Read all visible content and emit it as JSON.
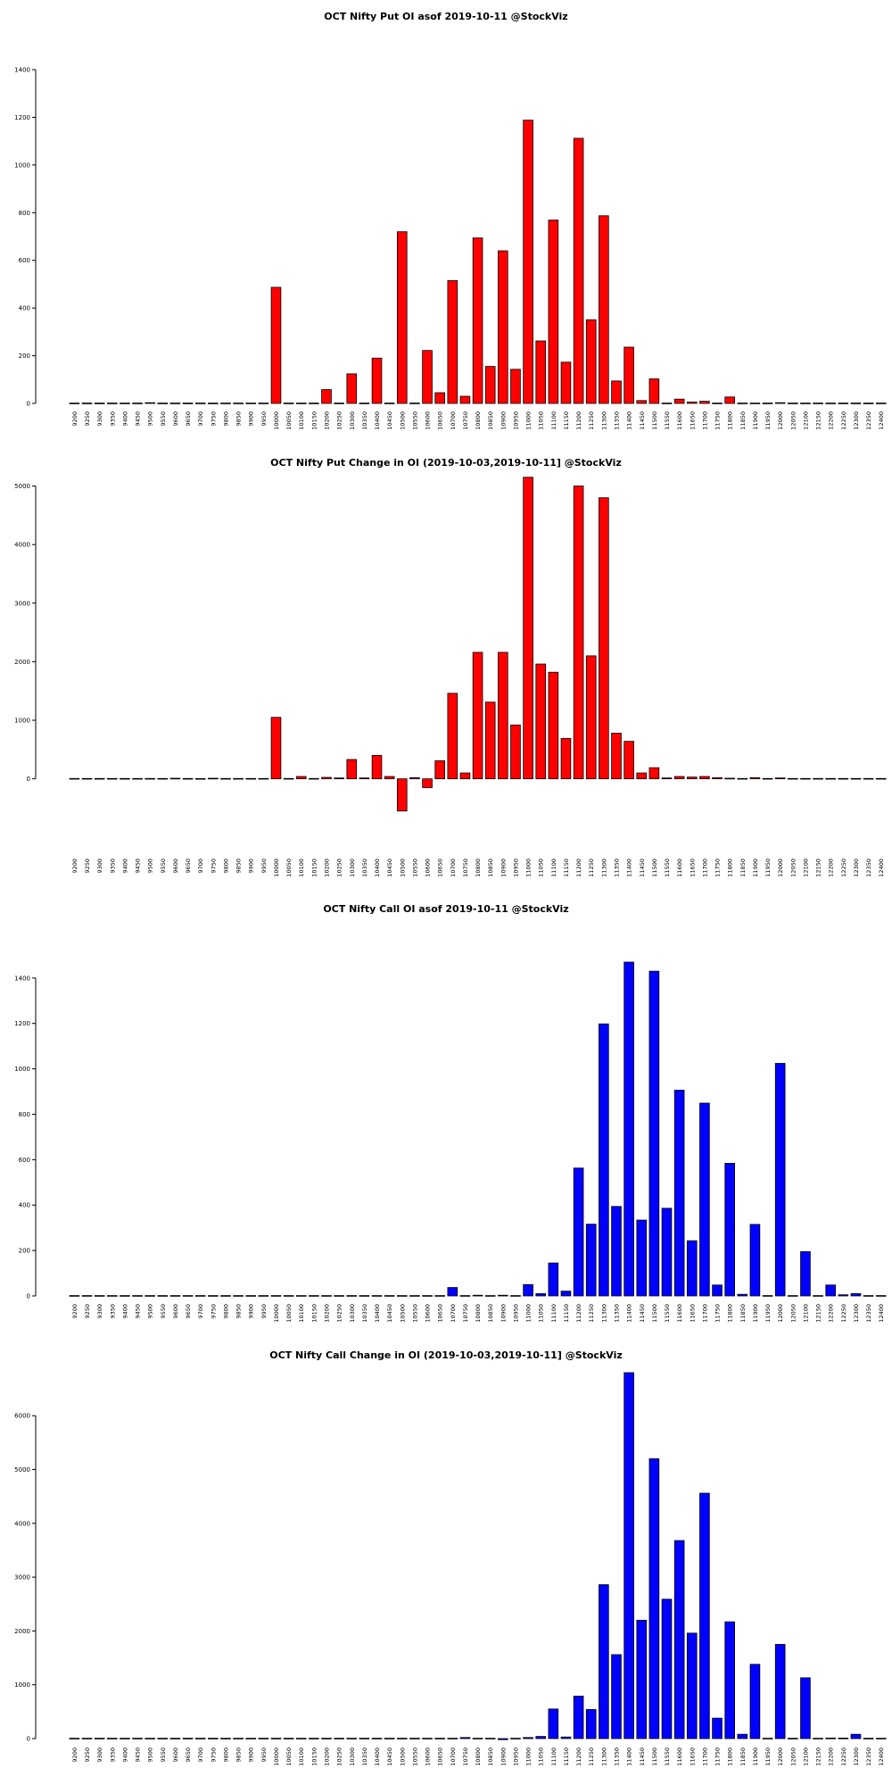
{
  "strikes": [
    "9200",
    "9250",
    "9300",
    "9350",
    "9400",
    "9450",
    "9500",
    "9550",
    "9600",
    "9650",
    "9700",
    "9750",
    "9800",
    "9850",
    "9900",
    "9950",
    "10000",
    "10050",
    "10100",
    "10150",
    "10200",
    "10250",
    "10300",
    "10350",
    "10400",
    "10450",
    "10500",
    "10550",
    "10600",
    "10650",
    "10700",
    "10750",
    "10800",
    "10850",
    "10900",
    "10950",
    "11000",
    "11050",
    "11100",
    "11150",
    "11200",
    "11250",
    "11300",
    "11350",
    "11400",
    "11450",
    "11500",
    "11550",
    "11600",
    "11650",
    "11700",
    "11750",
    "11800",
    "11850",
    "11900",
    "11950",
    "12000",
    "12050",
    "12100",
    "12150",
    "12200",
    "12250",
    "12300",
    "12350",
    "12400"
  ],
  "chart_data": [
    {
      "type": "bar",
      "title": "OCT Nifty Put OI asof 2019-10-11 @StockViz",
      "color": "#ff0000",
      "ylim": [
        0,
        1400
      ],
      "yticks": [
        0,
        200,
        400,
        600,
        800,
        1000,
        1200,
        1400
      ],
      "series": [
        {
          "values": [
            0,
            0,
            0,
            0,
            0,
            0,
            3,
            0,
            0,
            0,
            0,
            0,
            0,
            0,
            0,
            0,
            487,
            0,
            0,
            0,
            58,
            0,
            124,
            0,
            190,
            0,
            720,
            0,
            222,
            45,
            515,
            30,
            694,
            155,
            640,
            143,
            1188,
            262,
            769,
            173,
            1112,
            351,
            787,
            94,
            236,
            12,
            103,
            0,
            18,
            6,
            9,
            0,
            27,
            0,
            0,
            0,
            3,
            0,
            0,
            0,
            0,
            0,
            0,
            0,
            0
          ]
        }
      ]
    },
    {
      "type": "bar",
      "title": "OCT Nifty Put Change in OI (2019-10-03,2019-10-11] @StockViz",
      "color": "#ff0000",
      "ylim": [
        -600,
        5100
      ],
      "yticks": [
        0,
        1000,
        2000,
        3000,
        4000,
        5000
      ],
      "series": [
        {
          "values": [
            0,
            0,
            0,
            0,
            0,
            0,
            0,
            0,
            10,
            0,
            5,
            10,
            0,
            0,
            0,
            0,
            1050,
            0,
            40,
            0,
            25,
            15,
            330,
            15,
            400,
            40,
            -550,
            20,
            -150,
            310,
            1460,
            100,
            2160,
            1310,
            2160,
            920,
            5150,
            1960,
            1820,
            690,
            5000,
            2100,
            4800,
            780,
            640,
            100,
            190,
            15,
            40,
            30,
            40,
            20,
            10,
            0,
            20,
            0,
            15,
            0,
            0,
            0,
            0,
            0,
            0,
            0,
            0
          ]
        }
      ]
    },
    {
      "type": "bar",
      "title": "OCT Nifty Call OI asof 2019-10-11 @StockViz",
      "color": "#0000ff",
      "ylim": [
        0,
        1470
      ],
      "yticks": [
        0,
        200,
        400,
        600,
        800,
        1000,
        1200,
        1400
      ],
      "series": [
        {
          "values": [
            0,
            0,
            0,
            0,
            0,
            0,
            0,
            0,
            0,
            0,
            0,
            0,
            0,
            0,
            0,
            0,
            0,
            0,
            0,
            0,
            0,
            0,
            0,
            0,
            0,
            0,
            0,
            0,
            0,
            0,
            37,
            0,
            3,
            0,
            3,
            0,
            50,
            10,
            145,
            21,
            563,
            316,
            1198,
            394,
            1470,
            334,
            1430,
            386,
            906,
            243,
            849,
            48,
            584,
            7,
            315,
            0,
            1024,
            0,
            195,
            0,
            48,
            5,
            10,
            0,
            0
          ]
        }
      ]
    },
    {
      "type": "bar",
      "title": "OCT Nifty Call Change in OI (2019-10-03,2019-10-11] @StockViz",
      "color": "#0000ff",
      "ylim": [
        0,
        6800
      ],
      "yticks": [
        0,
        1000,
        2000,
        3000,
        4000,
        5000,
        6000
      ],
      "series": [
        {
          "values": [
            0,
            0,
            0,
            0,
            0,
            0,
            0,
            0,
            0,
            0,
            0,
            0,
            0,
            0,
            0,
            0,
            0,
            0,
            0,
            0,
            0,
            0,
            0,
            0,
            0,
            0,
            0,
            0,
            0,
            0,
            0,
            20,
            0,
            0,
            -20,
            0,
            20,
            40,
            550,
            30,
            790,
            540,
            2860,
            1560,
            6800,
            2200,
            5200,
            2590,
            3680,
            1960,
            4560,
            380,
            2170,
            80,
            1380,
            0,
            1750,
            0,
            1130,
            0,
            10,
            10,
            80,
            0,
            0
          ]
        }
      ]
    }
  ]
}
